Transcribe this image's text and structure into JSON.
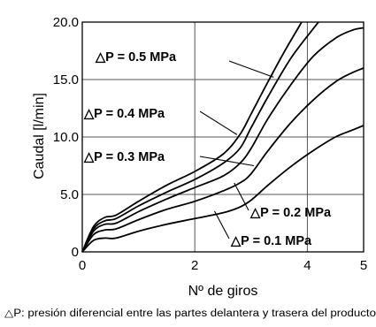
{
  "chart_data": {
    "type": "line",
    "title": "",
    "xlabel": "Nº de giros",
    "ylabel": "Caudal [l/min]",
    "xlim": [
      0,
      5
    ],
    "ylim": [
      0,
      20
    ],
    "x_ticks": [
      {
        "value": 0,
        "label": "0"
      },
      {
        "value": 2,
        "label": "2"
      },
      {
        "value": 4,
        "label": "4"
      },
      {
        "value": 5,
        "label": "5"
      }
    ],
    "y_ticks": [
      {
        "value": 0,
        "label": "0"
      },
      {
        "value": 5,
        "label": "5.0"
      },
      {
        "value": 10,
        "label": "10.0"
      },
      {
        "value": 15,
        "label": "15.0"
      },
      {
        "value": 20,
        "label": "20.0"
      }
    ],
    "grid": true,
    "series": [
      {
        "name": "P = 0.5 MPa",
        "points": [
          [
            0,
            0
          ],
          [
            0.2,
            2.2
          ],
          [
            0.4,
            3.0
          ],
          [
            0.6,
            3.2
          ],
          [
            1.0,
            4.4
          ],
          [
            1.5,
            5.8
          ],
          [
            2.0,
            7.0
          ],
          [
            2.5,
            8.5
          ],
          [
            2.8,
            10.2
          ],
          [
            3.0,
            12.0
          ],
          [
            3.3,
            14.8
          ],
          [
            3.6,
            17.5
          ],
          [
            3.9,
            20.0
          ]
        ]
      },
      {
        "name": "P = 0.4 MPa",
        "points": [
          [
            0,
            0
          ],
          [
            0.2,
            2.0
          ],
          [
            0.4,
            2.7
          ],
          [
            0.6,
            2.9
          ],
          [
            1.0,
            4.0
          ],
          [
            1.5,
            5.2
          ],
          [
            2.0,
            6.3
          ],
          [
            2.5,
            7.7
          ],
          [
            2.8,
            9.0
          ],
          [
            3.0,
            10.8
          ],
          [
            3.3,
            13.5
          ],
          [
            3.7,
            16.8
          ],
          [
            4.1,
            19.4
          ],
          [
            4.2,
            20.0
          ]
        ]
      },
      {
        "name": "P = 0.3 MPa",
        "points": [
          [
            0,
            0
          ],
          [
            0.2,
            1.8
          ],
          [
            0.4,
            2.4
          ],
          [
            0.6,
            2.5
          ],
          [
            1.0,
            3.5
          ],
          [
            1.5,
            4.6
          ],
          [
            2.0,
            5.6
          ],
          [
            2.5,
            6.6
          ],
          [
            2.8,
            7.7
          ],
          [
            3.0,
            9.0
          ],
          [
            3.3,
            11.6
          ],
          [
            3.7,
            14.5
          ],
          [
            4.1,
            17.0
          ],
          [
            4.5,
            18.6
          ],
          [
            4.8,
            19.3
          ],
          [
            5.0,
            19.5
          ]
        ]
      },
      {
        "name": "P = 0.2 MPa",
        "points": [
          [
            0,
            0
          ],
          [
            0.2,
            1.5
          ],
          [
            0.4,
            1.9
          ],
          [
            0.6,
            2.0
          ],
          [
            1.0,
            2.8
          ],
          [
            1.5,
            3.7
          ],
          [
            2.0,
            4.4
          ],
          [
            2.5,
            5.3
          ],
          [
            2.8,
            6.0
          ],
          [
            3.0,
            6.8
          ],
          [
            3.3,
            8.8
          ],
          [
            3.7,
            11.2
          ],
          [
            4.1,
            13.2
          ],
          [
            4.5,
            14.8
          ],
          [
            4.8,
            15.6
          ],
          [
            5.0,
            16.0
          ]
        ]
      },
      {
        "name": "P = 0.1 MPa",
        "points": [
          [
            0,
            0
          ],
          [
            0.2,
            1.0
          ],
          [
            0.4,
            1.2
          ],
          [
            0.6,
            1.2
          ],
          [
            1.0,
            1.8
          ],
          [
            1.5,
            2.4
          ],
          [
            2.0,
            2.9
          ],
          [
            2.5,
            3.4
          ],
          [
            2.8,
            3.9
          ],
          [
            3.0,
            4.5
          ],
          [
            3.3,
            5.8
          ],
          [
            3.7,
            7.4
          ],
          [
            4.1,
            8.8
          ],
          [
            4.5,
            10.0
          ],
          [
            4.8,
            10.6
          ],
          [
            5.0,
            11.0
          ]
        ]
      }
    ],
    "series_labels": [
      {
        "text": "△P = 0.5 MPa",
        "anchor_x": 3.4,
        "anchor_y": 15.2
      },
      {
        "text": "△P = 0.4 MPa",
        "anchor_x": 2.75,
        "anchor_y": 10.2
      },
      {
        "text": "△P = 0.3 MPa",
        "anchor_x": 3.05,
        "anchor_y": 7.5
      },
      {
        "text": "△P = 0.2 MPa",
        "anchor_x": 2.7,
        "anchor_y": 6.0
      },
      {
        "text": "△P = 0.1 MPa",
        "anchor_x": 2.35,
        "anchor_y": 3.55
      }
    ],
    "footnote": "△P: presión diferencial entre las partes delantera y trasera del producto"
  }
}
